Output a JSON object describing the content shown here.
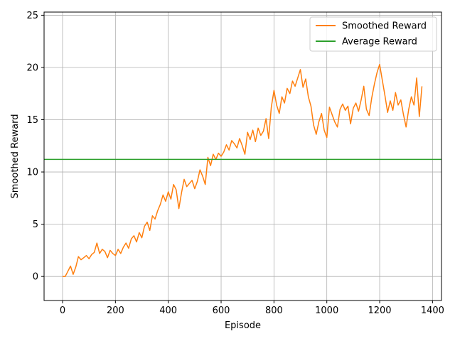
{
  "chart_data": {
    "type": "line",
    "title": "",
    "xlabel": "Episode",
    "ylabel": "Smoothed Reward",
    "xlim": [
      -70,
      1434
    ],
    "ylim": [
      -2.3,
      25.3
    ],
    "xticks": [
      0,
      200,
      400,
      600,
      800,
      1000,
      1200,
      1400
    ],
    "yticks": [
      0,
      5,
      10,
      15,
      20,
      25
    ],
    "grid": true,
    "legend_position": "top-right",
    "series": [
      {
        "name": "Smoothed Reward",
        "color": "#ff7f0e",
        "style": "line",
        "x": [
          0,
          10,
          20,
          30,
          40,
          50,
          60,
          70,
          80,
          90,
          100,
          110,
          120,
          130,
          140,
          150,
          160,
          170,
          180,
          190,
          200,
          210,
          220,
          230,
          240,
          250,
          260,
          270,
          280,
          290,
          300,
          310,
          320,
          330,
          340,
          350,
          360,
          370,
          380,
          390,
          400,
          410,
          420,
          430,
          440,
          450,
          460,
          470,
          480,
          490,
          500,
          510,
          520,
          530,
          540,
          550,
          560,
          570,
          580,
          590,
          600,
          610,
          620,
          630,
          640,
          650,
          660,
          670,
          680,
          690,
          700,
          710,
          720,
          730,
          740,
          750,
          760,
          770,
          780,
          790,
          800,
          810,
          820,
          830,
          840,
          850,
          860,
          870,
          880,
          890,
          900,
          910,
          920,
          930,
          940,
          950,
          960,
          970,
          980,
          990,
          1000,
          1010,
          1020,
          1030,
          1040,
          1050,
          1060,
          1070,
          1080,
          1090,
          1100,
          1110,
          1120,
          1130,
          1140,
          1150,
          1160,
          1170,
          1180,
          1190,
          1200,
          1210,
          1220,
          1230,
          1240,
          1250,
          1260,
          1270,
          1280,
          1290,
          1300,
          1310,
          1320,
          1330,
          1340,
          1350,
          1360
        ],
        "y": [
          0.0,
          0.0,
          0.5,
          1.0,
          0.2,
          0.9,
          1.9,
          1.6,
          1.8,
          2.0,
          1.7,
          2.1,
          2.3,
          3.2,
          2.2,
          2.6,
          2.4,
          1.8,
          2.5,
          2.2,
          2.0,
          2.6,
          2.2,
          2.8,
          3.2,
          2.7,
          3.6,
          3.9,
          3.3,
          4.2,
          3.7,
          4.8,
          5.2,
          4.4,
          5.8,
          5.5,
          6.3,
          6.9,
          7.8,
          7.2,
          8.1,
          7.4,
          8.8,
          8.3,
          6.5,
          8.0,
          9.3,
          8.6,
          8.9,
          9.2,
          8.4,
          9.1,
          10.2,
          9.6,
          8.8,
          11.4,
          10.6,
          11.7,
          11.2,
          11.8,
          11.5,
          11.9,
          12.6,
          12.1,
          13.0,
          12.7,
          12.3,
          13.2,
          12.5,
          11.7,
          13.8,
          13.1,
          14.0,
          12.9,
          14.2,
          13.5,
          13.9,
          15.1,
          13.2,
          16.2,
          17.8,
          16.4,
          15.6,
          17.2,
          16.6,
          18.0,
          17.5,
          18.7,
          18.2,
          19.0,
          19.8,
          18.1,
          18.9,
          17.2,
          16.3,
          14.5,
          13.6,
          14.8,
          15.6,
          14.0,
          13.3,
          16.2,
          15.5,
          14.8,
          14.3,
          16.0,
          16.5,
          15.9,
          16.3,
          14.6,
          16.1,
          16.6,
          15.8,
          16.9,
          18.2,
          16.0,
          15.4,
          17.1,
          18.4,
          19.5,
          20.3,
          18.8,
          17.3,
          15.7,
          16.8,
          15.9,
          17.6,
          16.4,
          16.9,
          15.5,
          14.3,
          16.0,
          17.2,
          16.4,
          19.0,
          15.3,
          18.2
        ]
      },
      {
        "name": "Average Reward",
        "color": "#2ca02c",
        "style": "hline",
        "y": 11.2
      }
    ]
  }
}
